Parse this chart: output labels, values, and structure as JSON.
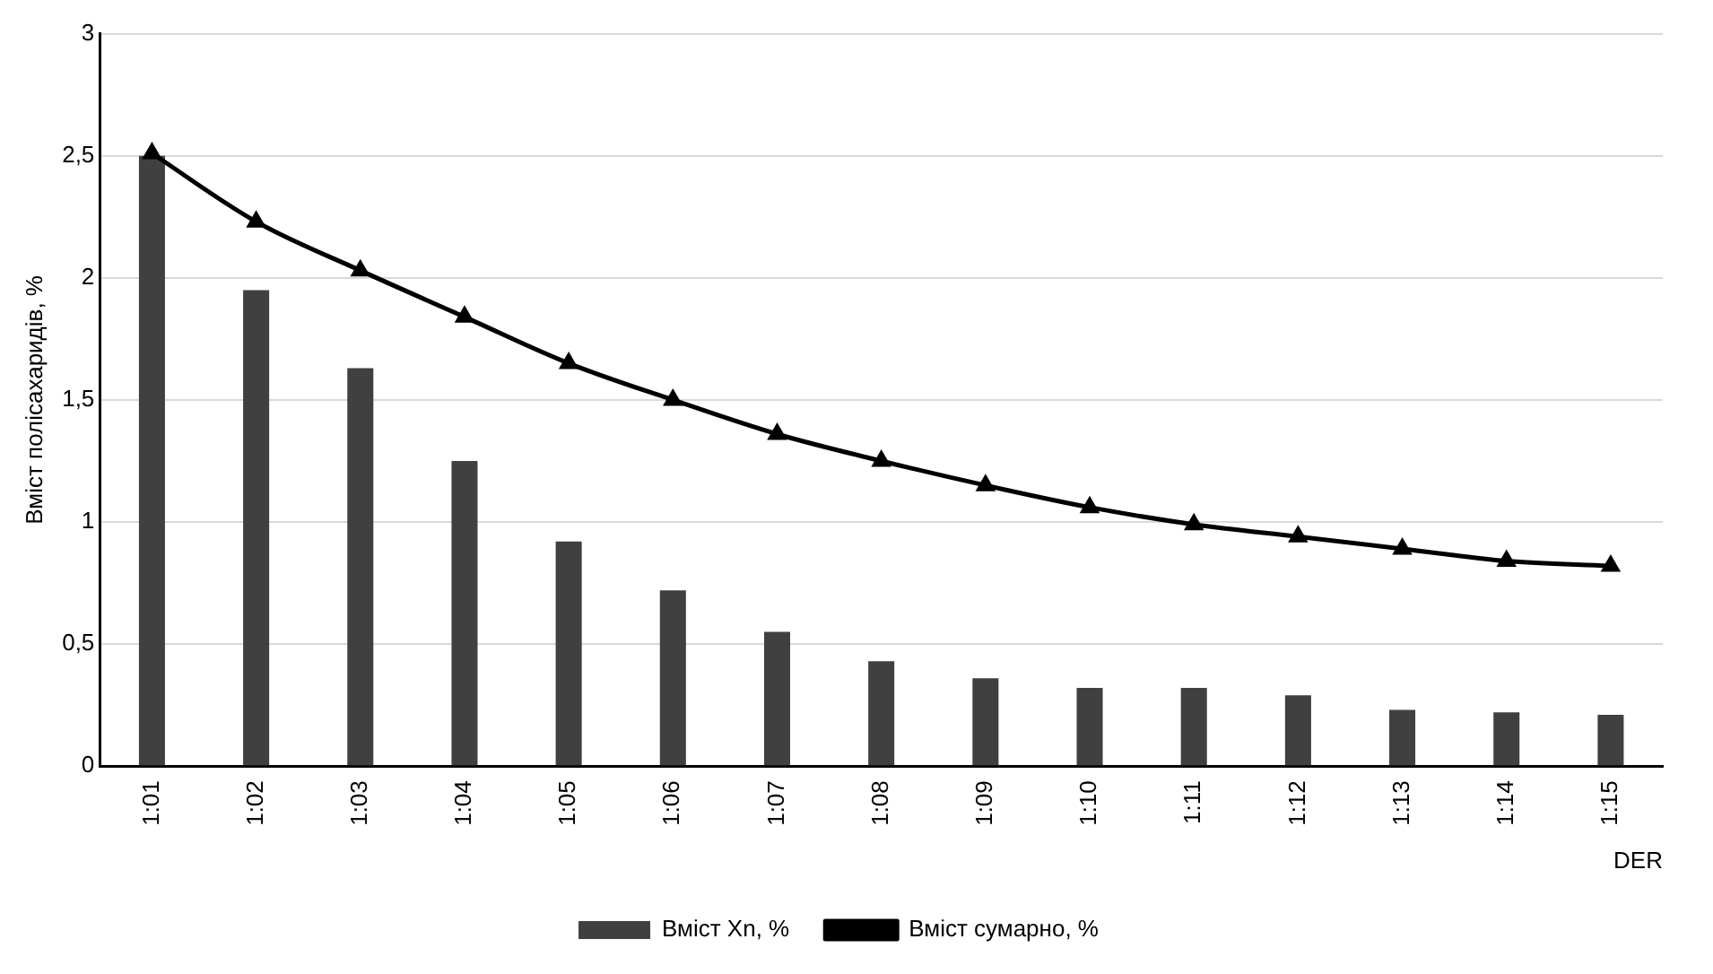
{
  "chart_data": {
    "type": "bar",
    "xlabel": "DER",
    "ylabel": "Вміст полісахаридів, %",
    "categories": [
      "1:01",
      "1:02",
      "1:03",
      "1:04",
      "1:05",
      "1:06",
      "1:07",
      "1:08",
      "1:09",
      "1:10",
      "1:11",
      "1:12",
      "1:13",
      "1:14",
      "1:15"
    ],
    "series": [
      {
        "name": "Вміст Хn, %",
        "color": "#404040",
        "values": [
          2.5,
          1.95,
          1.63,
          1.25,
          0.92,
          0.72,
          0.55,
          0.43,
          0.36,
          0.32,
          0.32,
          0.29,
          0.23,
          0.22,
          0.21
        ]
      },
      {
        "name": "Вміст сумарно, %",
        "type": "line",
        "color": "#000000",
        "marker": "triangle",
        "values": [
          2.51,
          2.23,
          2.03,
          1.84,
          1.65,
          1.5,
          1.36,
          1.25,
          1.15,
          1.06,
          0.99,
          0.94,
          0.89,
          0.84,
          0.82
        ]
      }
    ],
    "ylim": [
      0,
      3
    ],
    "yticks": [
      0,
      {
        "value": 0.5,
        "label": "0,5"
      },
      1,
      {
        "value": 1.5,
        "label": "1,5"
      },
      2,
      {
        "value": 2.5,
        "label": "2,5"
      },
      3
    ],
    "grid": "y",
    "legend": "bottom"
  }
}
